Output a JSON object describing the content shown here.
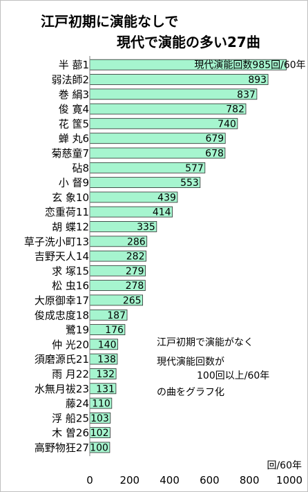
{
  "chart_data": {
    "type": "bar",
    "orientation": "horizontal",
    "title_line1": "江戸初期に演能なしで",
    "title_line2": "現代で演能の多い27曲",
    "categories": [
      "半 蔀1",
      "弱法師2",
      "巻 絹3",
      "俊 寛4",
      "花 筺5",
      "蝉 丸6",
      "菊慈童7",
      "砧8",
      "小 督9",
      "玄 象10",
      "恋重荷11",
      "胡 蝶12",
      "草子洗小町13",
      "吉野天人14",
      "求 塚15",
      "松 虫16",
      "大原御幸17",
      "俊成忠度18",
      "鷺19",
      "仲 光20",
      "須磨源氏21",
      "雨 月22",
      "水無月祓23",
      "藤24",
      "浮 船25",
      "木 曽26",
      "高野物狂27"
    ],
    "values": [
      985,
      893,
      837,
      782,
      740,
      679,
      678,
      577,
      553,
      439,
      414,
      335,
      286,
      282,
      279,
      278,
      265,
      187,
      176,
      140,
      138,
      132,
      131,
      110,
      103,
      102,
      100
    ],
    "first_bar_label": "現代演能回数985回/60年",
    "xlim": [
      0,
      1000
    ],
    "xticks": [
      0,
      200,
      400,
      600,
      800,
      1000
    ],
    "xunit": "回/60年",
    "bar_color": "#a6f5cf",
    "bar_edge_color": "#2a2a2a",
    "grid": false,
    "legend": "none"
  },
  "annotation": {
    "line1": "江戸初期で演能がなく",
    "line2": "現代演能回数が",
    "line3": "100回以上/60年",
    "line4": "の曲をグラフ化"
  }
}
